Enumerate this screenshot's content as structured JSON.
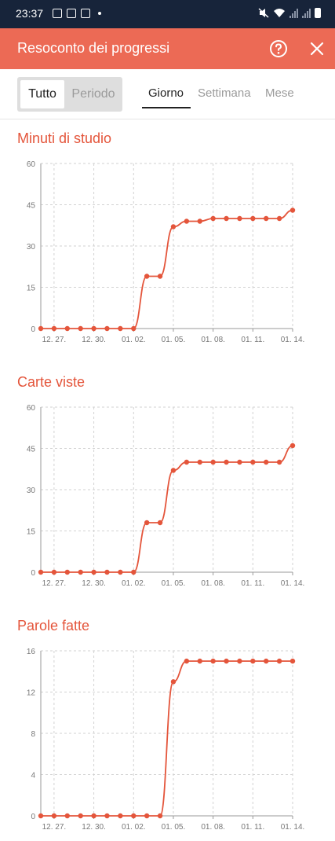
{
  "status_bar": {
    "time": "23:37",
    "left_icons": [
      "photo-icon",
      "gmail-icon",
      "nfc-icon",
      "dot-icon"
    ],
    "right_icons": [
      "mute-icon",
      "wifi-icon",
      "signal-icon",
      "signal-icon",
      "battery-icon"
    ]
  },
  "app_bar": {
    "title": "Resoconto dei progressi",
    "help_icon": "help-circle-icon",
    "close_icon": "close-icon",
    "background": "#ec6a55"
  },
  "filter": {
    "options": [
      "Tutto",
      "Periodo"
    ],
    "selected": "Tutto"
  },
  "period_tabs": {
    "items": [
      "Giorno",
      "Settimana",
      "Mese"
    ],
    "selected": "Giorno"
  },
  "accent_color": "#e4553b",
  "charts": [
    {
      "title": "Minuti di studio"
    },
    {
      "title": "Carte viste"
    },
    {
      "title": "Parole fatte"
    }
  ],
  "chart_data": [
    {
      "type": "line",
      "title": "Minuti di studio",
      "x": [
        "12. 26.",
        "12. 27.",
        "12. 28.",
        "12. 29.",
        "12. 30.",
        "12. 31.",
        "01. 01.",
        "01. 02.",
        "01. 03.",
        "01. 04.",
        "01. 05.",
        "01. 06.",
        "01. 07.",
        "01. 08.",
        "01. 09.",
        "01. 10.",
        "01. 11.",
        "01. 12.",
        "01. 13.",
        "01. 14."
      ],
      "values": [
        0,
        0,
        0,
        0,
        0,
        0,
        0,
        0,
        19,
        19,
        37,
        39,
        39,
        40,
        40,
        40,
        40,
        40,
        40,
        43
      ],
      "x_tick_labels": [
        "12. 27.",
        "12. 30.",
        "01. 02.",
        "01. 05.",
        "01. 08.",
        "01. 11.",
        "01. 14."
      ],
      "y_ticks": [
        0,
        15,
        30,
        45,
        60
      ],
      "ylim": [
        0,
        60
      ],
      "grid": true
    },
    {
      "type": "line",
      "title": "Carte viste",
      "x": [
        "12. 26.",
        "12. 27.",
        "12. 28.",
        "12. 29.",
        "12. 30.",
        "12. 31.",
        "01. 01.",
        "01. 02.",
        "01. 03.",
        "01. 04.",
        "01. 05.",
        "01. 06.",
        "01. 07.",
        "01. 08.",
        "01. 09.",
        "01. 10.",
        "01. 11.",
        "01. 12.",
        "01. 13.",
        "01. 14."
      ],
      "values": [
        0,
        0,
        0,
        0,
        0,
        0,
        0,
        0,
        18,
        18,
        37,
        40,
        40,
        40,
        40,
        40,
        40,
        40,
        40,
        46
      ],
      "x_tick_labels": [
        "12. 27.",
        "12. 30.",
        "01. 02.",
        "01. 05.",
        "01. 08.",
        "01. 11.",
        "01. 14."
      ],
      "y_ticks": [
        0,
        15,
        30,
        45,
        60
      ],
      "ylim": [
        0,
        60
      ],
      "grid": true
    },
    {
      "type": "line",
      "title": "Parole fatte",
      "x": [
        "12. 26.",
        "12. 27.",
        "12. 28.",
        "12. 29.",
        "12. 30.",
        "12. 31.",
        "01. 01.",
        "01. 02.",
        "01. 03.",
        "01. 04.",
        "01. 05.",
        "01. 06.",
        "01. 07.",
        "01. 08.",
        "01. 09.",
        "01. 10.",
        "01. 11.",
        "01. 12.",
        "01. 13.",
        "01. 14."
      ],
      "values": [
        0,
        0,
        0,
        0,
        0,
        0,
        0,
        0,
        0,
        0,
        13,
        15,
        15,
        15,
        15,
        15,
        15,
        15,
        15,
        15
      ],
      "x_tick_labels": [
        "12. 27.",
        "12. 30.",
        "01. 02.",
        "01. 05.",
        "01. 08.",
        "01. 11.",
        "01. 14."
      ],
      "y_ticks": [
        0,
        4,
        8,
        12,
        16
      ],
      "ylim": [
        0,
        16
      ],
      "grid": true
    }
  ]
}
